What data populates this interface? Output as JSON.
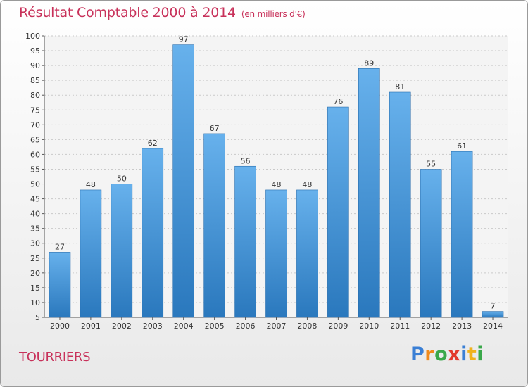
{
  "title": "Résultat Comptable 2000 à 2014",
  "subtitle": "(en milliers d'€)",
  "commune": "TOURRIERS",
  "logo": {
    "text": "Proxiti",
    "letters": [
      "P",
      "r",
      "o",
      "x",
      "i",
      "t",
      "i"
    ],
    "colors": [
      "#3a7fd5",
      "#f08a1c",
      "#3aa84a",
      "#e23a2c",
      "#3a7fd5",
      "#f0b21c",
      "#3aa84a"
    ]
  },
  "colors": {
    "accent": "#c8315a",
    "bar_light": "#67b1ec",
    "bar_dark": "#2a78bd"
  },
  "chart_data": {
    "type": "bar",
    "categories": [
      "2000",
      "2001",
      "2002",
      "2003",
      "2004",
      "2005",
      "2006",
      "2007",
      "2008",
      "2009",
      "2010",
      "2011",
      "2012",
      "2013",
      "2014"
    ],
    "values": [
      27,
      48,
      50,
      62,
      97,
      67,
      56,
      48,
      48,
      76,
      89,
      81,
      55,
      61,
      7
    ],
    "ylim": [
      5,
      100
    ],
    "yticks": [
      5,
      10,
      15,
      20,
      25,
      30,
      35,
      40,
      45,
      50,
      55,
      60,
      65,
      70,
      75,
      80,
      85,
      90,
      95,
      100
    ],
    "grid": true,
    "legend": "none"
  }
}
